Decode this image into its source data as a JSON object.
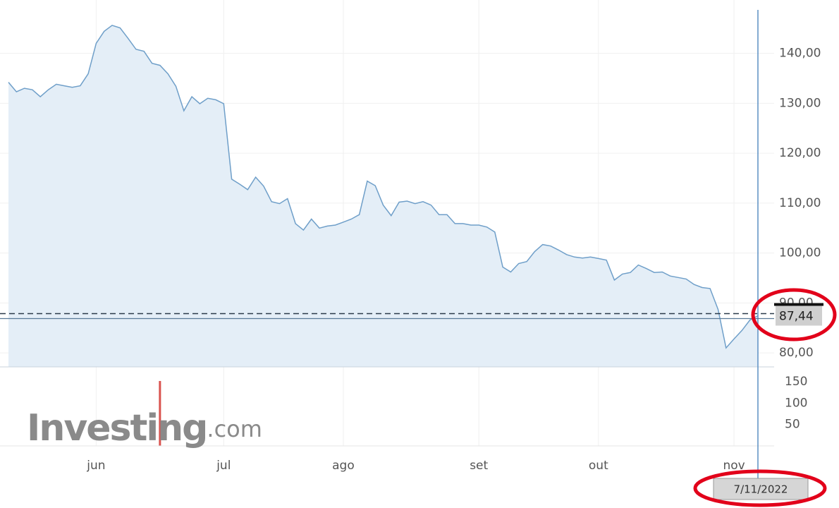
{
  "chart_data": {
    "type": "area",
    "color": "#6f9fc9",
    "fill": "#e4eef7",
    "values": [
      134.2,
      132.3,
      133.0,
      132.7,
      131.3,
      132.7,
      133.8,
      133.5,
      133.2,
      133.5,
      135.9,
      142.0,
      144.4,
      145.6,
      145.1,
      143.0,
      140.8,
      140.4,
      138.0,
      137.6,
      135.9,
      133.4,
      128.5,
      131.3,
      129.9,
      131.0,
      130.7,
      129.9,
      114.8,
      113.8,
      112.7,
      115.2,
      113.4,
      110.3,
      109.9,
      110.9,
      105.9,
      104.6,
      106.8,
      105.0,
      105.4,
      105.6,
      106.2,
      106.8,
      107.7,
      114.4,
      113.5,
      109.6,
      107.5,
      110.2,
      110.4,
      109.9,
      110.3,
      109.6,
      107.7,
      107.7,
      105.9,
      105.9,
      105.6,
      105.6,
      105.2,
      104.2,
      97.2,
      96.2,
      97.9,
      98.3,
      100.3,
      101.7,
      101.4,
      100.6,
      99.7,
      99.2,
      99.0,
      99.2,
      98.9,
      98.6,
      94.6,
      95.8,
      96.1,
      97.6,
      96.9,
      96.1,
      96.2,
      95.4,
      95.1,
      94.8,
      93.7,
      93.1,
      92.9,
      88.7,
      81.0,
      82.8,
      84.5,
      86.6,
      87.44
    ],
    "ylim": [
      77.2,
      148.7
    ],
    "yticks": [
      {
        "value": 80,
        "label": "80,00"
      },
      {
        "value": 90,
        "label": "90,00"
      },
      {
        "value": 100,
        "label": "100,00"
      },
      {
        "value": 110,
        "label": "110,00"
      },
      {
        "value": 120,
        "label": "120,00"
      },
      {
        "value": 130,
        "label": "130,00"
      },
      {
        "value": 140,
        "label": "140,00"
      }
    ],
    "xticks": [
      {
        "value": 11,
        "label": "jun"
      },
      {
        "value": 27,
        "label": "jul"
      },
      {
        "value": 42,
        "label": "ago"
      },
      {
        "value": 59,
        "label": "set"
      },
      {
        "value": 74,
        "label": "out"
      },
      {
        "value": 91,
        "label": "nov"
      }
    ],
    "last_value": 87.44,
    "last_value_label": "87,44",
    "crosshair_label": "7/11/2022",
    "volume": {
      "color": "#d9534f",
      "values": [
        null,
        null,
        null,
        null,
        null,
        null,
        null,
        null,
        null,
        null,
        null,
        null,
        null,
        null,
        null,
        null,
        null,
        null,
        null,
        152,
        null,
        null,
        null,
        null,
        null,
        null,
        null,
        null,
        null,
        null,
        null,
        null,
        null,
        null,
        null,
        null,
        null,
        null,
        null,
        null,
        null,
        null,
        null,
        null,
        null,
        null,
        null,
        null,
        null,
        null,
        null,
        null,
        null,
        null,
        null,
        null,
        null,
        null,
        null,
        null,
        null,
        null,
        null,
        null,
        null,
        null,
        null,
        null,
        null,
        null,
        null,
        null,
        null,
        null,
        null,
        null,
        null,
        null,
        null,
        null,
        null,
        null,
        null,
        null,
        null,
        null,
        null,
        null,
        null,
        null,
        null,
        null,
        null,
        null,
        null
      ],
      "ylim": [
        0,
        185
      ],
      "yticks": [
        50,
        100,
        150
      ]
    },
    "watermark": "Investing",
    "watermark_suffix": ".com",
    "grid": true
  }
}
